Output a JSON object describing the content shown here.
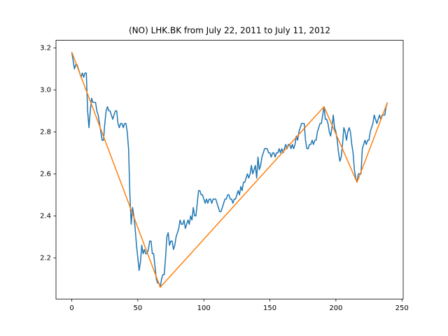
{
  "chart_data": {
    "type": "line",
    "title": "(NO) LHK.BK from July 22, 2011 to July 11, 2012",
    "xlim": [
      -11.95,
      250.95
    ],
    "xticks": [
      0,
      50,
      100,
      150,
      200,
      250
    ],
    "ylim": [
      2.004,
      3.236
    ],
    "yticks": [
      2.2,
      2.4,
      2.6,
      2.8,
      {
        "value": 3,
        "label": "3.0"
      },
      3.2
    ],
    "series": [
      {
        "color": "#1f77b4",
        "x": [
          0,
          1,
          2,
          3,
          4,
          5,
          6,
          7,
          8,
          9,
          10,
          11,
          12,
          13,
          14,
          15,
          16,
          17,
          18,
          19,
          20,
          21,
          22,
          23,
          24,
          25,
          26,
          27,
          28,
          29,
          30,
          31,
          32,
          33,
          34,
          35,
          36,
          37,
          38,
          39,
          40,
          41,
          42,
          43,
          44,
          45,
          46,
          47,
          48,
          49,
          50,
          51,
          52,
          53,
          54,
          55,
          56,
          57,
          58,
          59,
          60,
          61,
          62,
          63,
          64,
          65,
          66,
          67,
          68,
          69,
          70,
          71,
          72,
          73,
          74,
          75,
          76,
          77,
          78,
          79,
          80,
          81,
          82,
          83,
          84,
          85,
          86,
          87,
          88,
          89,
          90,
          91,
          92,
          93,
          94,
          95,
          96,
          97,
          98,
          99,
          100,
          101,
          102,
          103,
          104,
          105,
          106,
          107,
          108,
          109,
          110,
          111,
          112,
          113,
          114,
          115,
          116,
          117,
          118,
          119,
          120,
          121,
          122,
          123,
          124,
          125,
          126,
          127,
          128,
          129,
          130,
          131,
          132,
          133,
          134,
          135,
          136,
          137,
          138,
          139,
          140,
          141,
          142,
          143,
          144,
          145,
          146,
          147,
          148,
          149,
          150,
          151,
          152,
          153,
          154,
          155,
          156,
          157,
          158,
          159,
          160,
          161,
          162,
          163,
          164,
          165,
          166,
          167,
          168,
          169,
          170,
          171,
          172,
          173,
          174,
          175,
          176,
          177,
          178,
          179,
          180,
          181,
          182,
          183,
          184,
          185,
          186,
          187,
          188,
          189,
          190,
          191,
          192,
          193,
          194,
          195,
          196,
          197,
          198,
          199,
          200,
          201,
          202,
          203,
          204,
          205,
          206,
          207,
          208,
          209,
          210,
          211,
          212,
          213,
          214,
          215,
          216,
          217,
          218,
          219,
          220,
          221,
          222,
          223,
          224,
          225,
          226,
          227,
          228,
          229,
          230,
          231,
          232,
          233,
          234,
          235,
          236,
          237,
          238,
          239
        ],
        "values": [
          3.18,
          3.14,
          3.1,
          3.12,
          3.12,
          3.1,
          3.08,
          3.06,
          3.08,
          3.06,
          3.08,
          3.08,
          2.9,
          2.82,
          2.9,
          2.96,
          2.94,
          2.94,
          2.94,
          2.9,
          2.88,
          2.84,
          2.8,
          2.76,
          2.76,
          2.84,
          2.9,
          2.92,
          2.9,
          2.9,
          2.88,
          2.86,
          2.88,
          2.9,
          2.9,
          2.84,
          2.82,
          2.84,
          2.84,
          2.82,
          2.84,
          2.84,
          2.8,
          2.72,
          2.5,
          2.36,
          2.44,
          2.4,
          2.34,
          2.26,
          2.2,
          2.14,
          2.18,
          2.26,
          2.22,
          2.24,
          2.22,
          2.22,
          2.24,
          2.28,
          2.28,
          2.22,
          2.22,
          2.16,
          2.1,
          2.08,
          2.08,
          2.06,
          2.1,
          2.12,
          2.12,
          2.2,
          2.3,
          2.32,
          2.26,
          2.28,
          2.28,
          2.24,
          2.26,
          2.3,
          2.32,
          2.34,
          2.38,
          2.36,
          2.36,
          2.38,
          2.34,
          2.36,
          2.38,
          2.36,
          2.4,
          2.38,
          2.44,
          2.4,
          2.4,
          2.46,
          2.52,
          2.52,
          2.5,
          2.5,
          2.48,
          2.46,
          2.48,
          2.46,
          2.48,
          2.48,
          2.46,
          2.48,
          2.48,
          2.48,
          2.46,
          2.44,
          2.42,
          2.42,
          2.44,
          2.46,
          2.48,
          2.48,
          2.5,
          2.5,
          2.48,
          2.48,
          2.46,
          2.48,
          2.48,
          2.5,
          2.52,
          2.5,
          2.54,
          2.52,
          2.56,
          2.56,
          2.58,
          2.6,
          2.58,
          2.6,
          2.64,
          2.6,
          2.62,
          2.64,
          2.58,
          2.68,
          2.62,
          2.64,
          2.68,
          2.7,
          2.72,
          2.72,
          2.72,
          2.7,
          2.7,
          2.68,
          2.7,
          2.7,
          2.68,
          2.7,
          2.7,
          2.72,
          2.7,
          2.72,
          2.7,
          2.72,
          2.74,
          2.72,
          2.74,
          2.74,
          2.72,
          2.74,
          2.72,
          2.74,
          2.78,
          2.76,
          2.8,
          2.82,
          2.84,
          2.84,
          2.84,
          2.76,
          2.72,
          2.72,
          2.74,
          2.74,
          2.76,
          2.74,
          2.76,
          2.76,
          2.8,
          2.82,
          2.84,
          2.84,
          2.88,
          2.92,
          2.86,
          2.86,
          2.84,
          2.8,
          2.78,
          2.82,
          2.88,
          2.82,
          2.8,
          2.76,
          2.7,
          2.66,
          2.68,
          2.74,
          2.82,
          2.8,
          2.76,
          2.8,
          2.82,
          2.8,
          2.74,
          2.7,
          2.62,
          2.58,
          2.56,
          2.6,
          2.6,
          2.6,
          2.72,
          2.74,
          2.76,
          2.74,
          2.76,
          2.76,
          2.8,
          2.82,
          2.84,
          2.88,
          2.86,
          2.84,
          2.86,
          2.88,
          2.86,
          2.88,
          2.88,
          2.88,
          2.92,
          2.94
        ]
      },
      {
        "color": "#ff7f0e",
        "x": [
          0,
          67,
          191,
          216,
          239
        ],
        "values": [
          3.18,
          2.06,
          2.92,
          2.56,
          2.94
        ]
      }
    ]
  }
}
